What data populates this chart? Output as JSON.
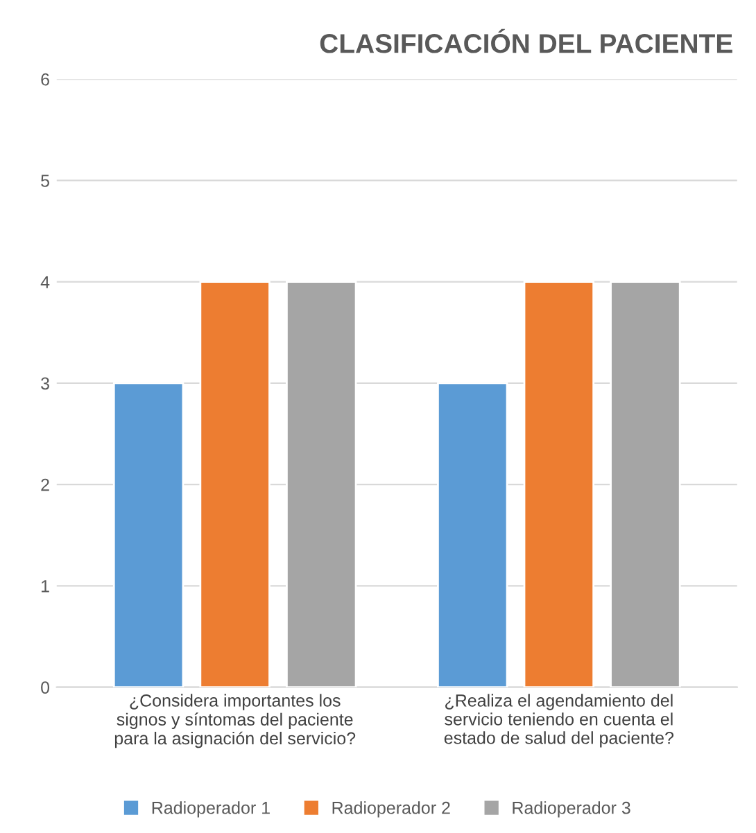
{
  "chart_data": {
    "type": "bar",
    "title": "CLASIFICACIÓN DEL PACIENTE",
    "categories": [
      "¿Considera importantes los\nsignos y síntomas del paciente\npara la asignación del servicio?",
      "¿Realiza el agendamiento del\nservicio teniendo en cuenta el\nestado de salud del paciente?"
    ],
    "series": [
      {
        "name": "Radioperador 1",
        "color": "#5b9bd5",
        "values": [
          3,
          3
        ]
      },
      {
        "name": "Radioperador 2",
        "color": "#ed7d31",
        "values": [
          4,
          4
        ]
      },
      {
        "name": "Radioperador 3",
        "color": "#a5a5a5",
        "values": [
          4,
          4
        ]
      }
    ],
    "ylim": [
      0,
      6
    ],
    "yticks": [
      0,
      1,
      2,
      3,
      4,
      5,
      6
    ],
    "grid": "y",
    "legend": "bottom"
  }
}
